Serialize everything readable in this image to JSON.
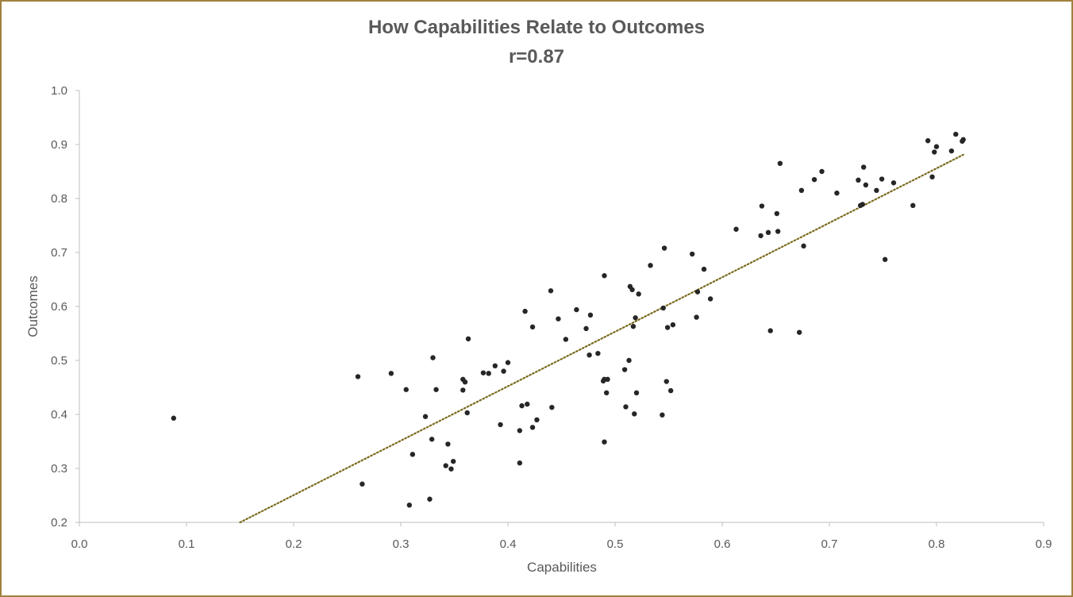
{
  "chart_data": {
    "type": "scatter",
    "title": "How Capabilities Relate to Outcomes",
    "subtitle": "r=0.87",
    "xlabel": "Capabilities",
    "ylabel": "Outcomes",
    "xlim": [
      0.0,
      0.9
    ],
    "ylim": [
      0.2,
      1.0
    ],
    "x_ticks": [
      "0.0",
      "0.1",
      "0.2",
      "0.3",
      "0.4",
      "0.5",
      "0.6",
      "0.7",
      "0.8",
      "0.9"
    ],
    "y_ticks": [
      "0.2",
      "0.3",
      "0.4",
      "0.5",
      "0.6",
      "0.7",
      "0.8",
      "0.9",
      "1.0"
    ],
    "grid": false,
    "legend": "none",
    "colors": {
      "points": "#262626",
      "trendline": "#7a6a1e",
      "axis": "#bfbfbf",
      "frame": "#a0823e",
      "text": "#595959"
    },
    "trendline": {
      "style": "dotted",
      "x": [
        0.15,
        0.825
      ],
      "y": [
        0.2,
        0.881
      ]
    },
    "series": [
      {
        "x": [
          0.088,
          0.26,
          0.264,
          0.291,
          0.305,
          0.308,
          0.311,
          0.323,
          0.327,
          0.329,
          0.33,
          0.333,
          0.342,
          0.344,
          0.347,
          0.349,
          0.358,
          0.358,
          0.36,
          0.362,
          0.363,
          0.377,
          0.382,
          0.388,
          0.393,
          0.396,
          0.4,
          0.411,
          0.411,
          0.413,
          0.416,
          0.418,
          0.423,
          0.423,
          0.427,
          0.44,
          0.441,
          0.447,
          0.454,
          0.464,
          0.473,
          0.476,
          0.477,
          0.484,
          0.489,
          0.49,
          0.49,
          0.49,
          0.492,
          0.493,
          0.509,
          0.51,
          0.513,
          0.514,
          0.516,
          0.517,
          0.518,
          0.519,
          0.52,
          0.522,
          0.533,
          0.544,
          0.545,
          0.546,
          0.548,
          0.549,
          0.552,
          0.554,
          0.572,
          0.576,
          0.577,
          0.583,
          0.589,
          0.613,
          0.636,
          0.637,
          0.643,
          0.645,
          0.651,
          0.652,
          0.654,
          0.672,
          0.674,
          0.676,
          0.686,
          0.693,
          0.707,
          0.727,
          0.729,
          0.731,
          0.732,
          0.734,
          0.744,
          0.749,
          0.752,
          0.76,
          0.778,
          0.792,
          0.796,
          0.798,
          0.8,
          0.814,
          0.818,
          0.824,
          0.825
        ],
        "y": [
          0.393,
          0.47,
          0.271,
          0.476,
          0.446,
          0.232,
          0.326,
          0.396,
          0.243,
          0.354,
          0.505,
          0.446,
          0.305,
          0.345,
          0.299,
          0.313,
          0.465,
          0.445,
          0.46,
          0.403,
          0.54,
          0.477,
          0.476,
          0.49,
          0.381,
          0.48,
          0.496,
          0.31,
          0.37,
          0.416,
          0.591,
          0.419,
          0.376,
          0.562,
          0.39,
          0.629,
          0.413,
          0.577,
          0.539,
          0.594,
          0.559,
          0.51,
          0.584,
          0.513,
          0.462,
          0.657,
          0.465,
          0.349,
          0.44,
          0.465,
          0.483,
          0.414,
          0.5,
          0.637,
          0.631,
          0.563,
          0.401,
          0.579,
          0.44,
          0.623,
          0.676,
          0.399,
          0.597,
          0.708,
          0.461,
          0.561,
          0.444,
          0.566,
          0.697,
          0.58,
          0.627,
          0.669,
          0.614,
          0.743,
          0.731,
          0.786,
          0.737,
          0.555,
          0.772,
          0.739,
          0.865,
          0.552,
          0.815,
          0.712,
          0.835,
          0.85,
          0.81,
          0.834,
          0.787,
          0.789,
          0.858,
          0.825,
          0.815,
          0.836,
          0.687,
          0.829,
          0.787,
          0.907,
          0.84,
          0.886,
          0.896,
          0.888,
          0.919,
          0.906,
          0.909
        ]
      }
    ]
  }
}
